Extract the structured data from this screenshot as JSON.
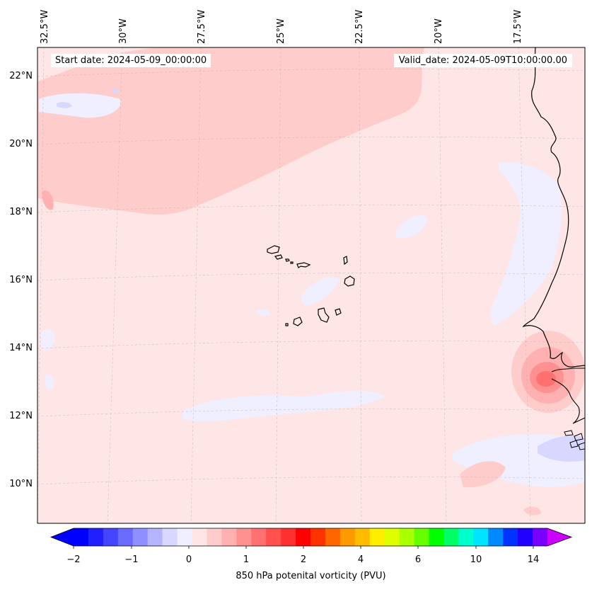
{
  "map": {
    "start_date": "Start date: 2024-05-09_00:00:00",
    "valid_date": "Valid_date: 2024-05-09T10:00:00.00",
    "variable": "850 hPa potenital vorticity (PVU)",
    "lon_labels": [
      "32.5°W",
      "30°W",
      "27.5°W",
      "25°W",
      "22.5°W",
      "20°W",
      "17.5°W"
    ],
    "lat_labels": [
      "22°N",
      "20°N",
      "18°N",
      "16°N",
      "14°N",
      "12°N",
      "10°N"
    ],
    "gridlines": true,
    "region": "Cape Verde Islands and West African coast",
    "background_color": "#ffe6e6"
  },
  "colorbar": {
    "tick_labels": [
      "−2",
      "−1",
      "0",
      "1",
      "2",
      "4",
      "6",
      "10",
      "14"
    ],
    "colors": [
      "#0000ff",
      "#2020ff",
      "#4545ff",
      "#6a6aff",
      "#8f8fff",
      "#b4b4ff",
      "#d8d8ff",
      "#efefff",
      "#ffe6e6",
      "#ffcccc",
      "#ffb0b0",
      "#ff9090",
      "#ff7070",
      "#ff5050",
      "#ff3030",
      "#ff0000",
      "#ff3300",
      "#ff6600",
      "#ff9900",
      "#ffbb00",
      "#ffee00",
      "#ddff00",
      "#aaff00",
      "#66ff00",
      "#00ff00",
      "#00ff66",
      "#00ffcc",
      "#00e5ff",
      "#0088ff",
      "#0033ff",
      "#2200ff",
      "#7700ff"
    ],
    "extend_low_color": "#0000ff",
    "extend_high_color": "#cc00ff"
  }
}
